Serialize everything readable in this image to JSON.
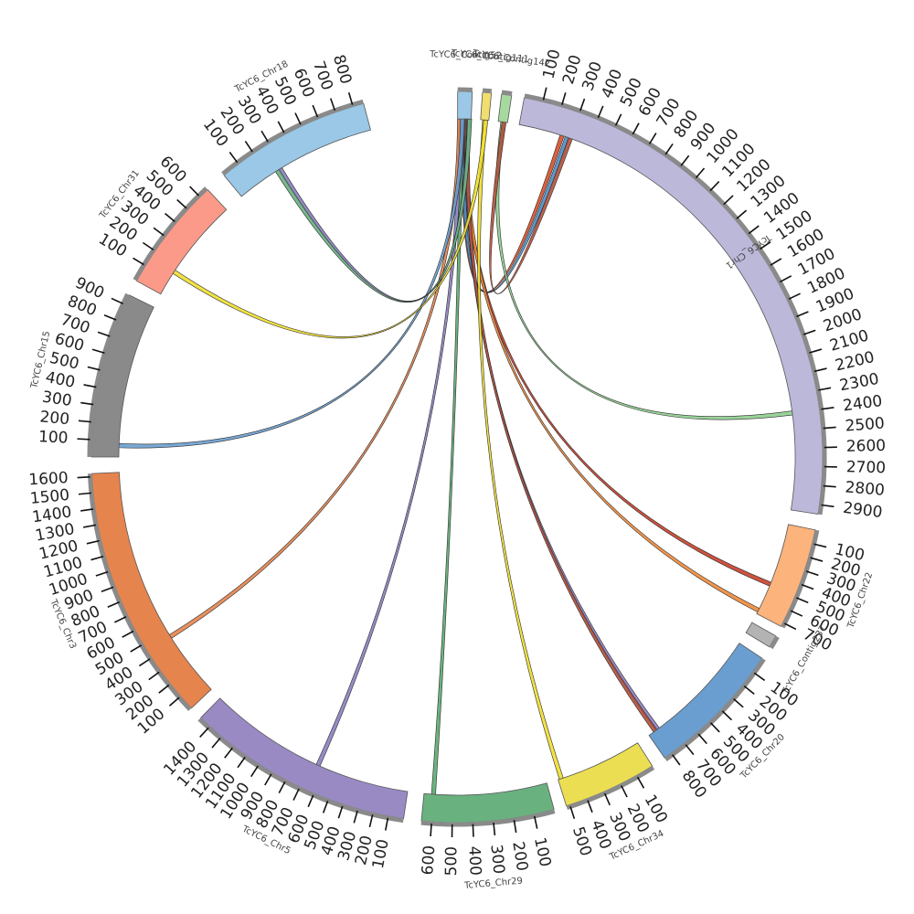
{
  "title": "",
  "chromosomes": [
    {
      "name": "TcYC6_Chr1",
      "length": 2950,
      "color": "#bcb8da",
      "ticks": [
        100,
        200,
        300,
        400,
        500,
        600,
        700,
        800,
        900,
        1000,
        1100,
        1200,
        1300,
        1400,
        1500,
        1600,
        1700,
        1800,
        1900,
        2000,
        2100,
        2200,
        2300,
        2400,
        2500,
        2600,
        2700,
        2800,
        2900
      ]
    },
    {
      "name": "TcYC6_Chr22",
      "length": 730,
      "color": "#fdb37c",
      "ticks": [
        100,
        200,
        300,
        400,
        500,
        600,
        700
      ]
    },
    {
      "name": "TcYC6_Contig237",
      "length": 40,
      "color": "#b3b3b3",
      "ticks": []
    },
    {
      "name": "TcYC6_Chr20",
      "length": 850,
      "color": "#6a9ed0",
      "ticks": [
        100,
        200,
        300,
        400,
        500,
        600,
        700,
        800
      ]
    },
    {
      "name": "TcYC6_Chr34",
      "length": 520,
      "color": "#ebde52",
      "ticks": [
        100,
        200,
        300,
        400,
        500
      ]
    },
    {
      "name": "TcYC6_Chr29",
      "length": 650,
      "color": "#6ab180",
      "ticks": [
        100,
        200,
        300,
        400,
        500,
        600
      ]
    },
    {
      "name": "TcYC6_Chr5",
      "length": 1480,
      "color": "#9a8ac4",
      "ticks": [
        100,
        200,
        300,
        400,
        500,
        600,
        700,
        800,
        900,
        1000,
        1100,
        1200,
        1300,
        1400
      ]
    },
    {
      "name": "TcYC6_Chr3",
      "length": 1620,
      "color": "#e6844e",
      "ticks": [
        100,
        200,
        300,
        400,
        500,
        600,
        700,
        800,
        900,
        1000,
        1100,
        1200,
        1300,
        1400,
        1500,
        1600
      ]
    },
    {
      "name": "TcYC6_Chr15",
      "length": 960,
      "color": "#8a8a8a",
      "ticks": [
        100,
        200,
        300,
        400,
        500,
        600,
        700,
        800,
        900
      ]
    },
    {
      "name": "TcYC6_Chr31",
      "length": 660,
      "color": "#fb9a89",
      "ticks": [
        100,
        200,
        300,
        400,
        500,
        600
      ]
    },
    {
      "name": "TcYC6_Chr18",
      "length": 860,
      "color": "#9ac8e6",
      "ticks": [
        100,
        200,
        300,
        400,
        500,
        600,
        700,
        800
      ]
    },
    {
      "name": "TcYC6_Contig52",
      "length": 70,
      "color": "#9ac8e6",
      "ticks": []
    },
    {
      "name": "TcYC6_Contig111",
      "length": 40,
      "color": "#f0df6f",
      "ticks": []
    },
    {
      "name": "TcYC6_Contig142",
      "length": 40,
      "color": "#a6d99e",
      "ticks": []
    }
  ],
  "links": [
    {
      "from": "TcYC6_Contig52",
      "from_pos": 30,
      "to": "TcYC6_Chr1",
      "to_pos": 250,
      "color": "#d84f2a"
    },
    {
      "from": "TcYC6_Contig52",
      "from_pos": 35,
      "to": "TcYC6_Chr1",
      "to_pos": 280,
      "color": "#4a8fc8"
    },
    {
      "from": "TcYC6_Contig142",
      "from_pos": 20,
      "to": "TcYC6_Chr1",
      "to_pos": 2400,
      "color": "#8fce8f"
    },
    {
      "from": "TcYC6_Contig52",
      "from_pos": 40,
      "to": "TcYC6_Chr22",
      "to_pos": 480,
      "color": "#c9402a"
    },
    {
      "from": "TcYC6_Contig52",
      "from_pos": 45,
      "to": "TcYC6_Chr22",
      "to_pos": 700,
      "color": "#f08a3a"
    },
    {
      "from": "TcYC6_Contig52",
      "from_pos": 50,
      "to": "TcYC6_Chr20",
      "to_pos": 780,
      "color": "#8b7fc0"
    },
    {
      "from": "TcYC6_Contig52",
      "from_pos": 55,
      "to": "TcYC6_Chr20",
      "to_pos": 800,
      "color": "#b0503a"
    },
    {
      "from": "TcYC6_Contig111",
      "from_pos": 20,
      "to": "TcYC6_Chr34",
      "to_pos": 500,
      "color": "#f0df30"
    },
    {
      "from": "TcYC6_Contig52",
      "from_pos": 20,
      "to": "TcYC6_Chr29",
      "to_pos": 600,
      "color": "#5cab70"
    },
    {
      "from": "TcYC6_Contig52",
      "from_pos": 15,
      "to": "TcYC6_Chr5",
      "to_pos": 650,
      "color": "#8b7fc0"
    },
    {
      "from": "TcYC6_Contig52",
      "from_pos": 10,
      "to": "TcYC6_Chr3",
      "to_pos": 450,
      "color": "#e6844e"
    },
    {
      "from": "TcYC6_Contig52",
      "from_pos": 25,
      "to": "TcYC6_Chr15",
      "to_pos": 70,
      "color": "#6a9ed0"
    },
    {
      "from": "TcYC6_Contig111",
      "from_pos": 25,
      "to": "TcYC6_Chr31",
      "to_pos": 160,
      "color": "#f0df30"
    },
    {
      "from": "TcYC6_Contig52",
      "from_pos": 60,
      "to": "TcYC6_Chr18",
      "to_pos": 280,
      "color": "#8b7fc0"
    },
    {
      "from": "TcYC6_Contig52",
      "from_pos": 62,
      "to": "TcYC6_Chr18",
      "to_pos": 260,
      "color": "#6ab180"
    },
    {
      "from": "TcYC6_Contig142",
      "from_pos": 25,
      "to": "TcYC6_Chr1",
      "to_pos": 300,
      "color": "#b0503a"
    }
  ]
}
